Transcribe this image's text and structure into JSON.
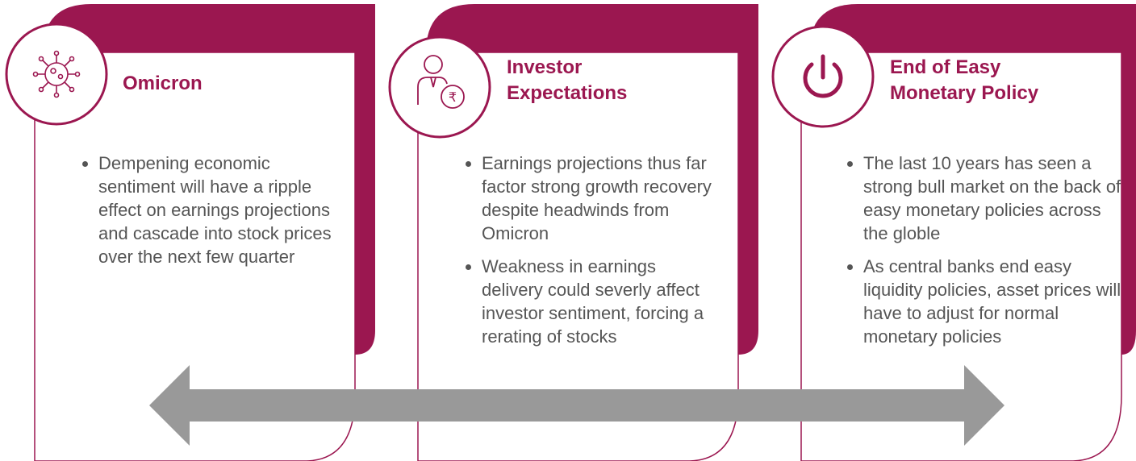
{
  "cards": [
    {
      "title": "Omicron",
      "bullets": [
        "Dempening economic sentiment will have a ripple effect on earnings projections and cascade into stock prices over the next few quarter"
      ]
    },
    {
      "title": "Investor Expectations",
      "bullets": [
        "Earnings projections thus far factor strong growth recovery despite headwinds from Omicron",
        "Weakness in earnings delivery could severly affect investor sentiment, forcing a rerating of stocks"
      ]
    },
    {
      "title": "End of Easy Monetary Policy",
      "bullets": [
        "The last 10 years has seen a strong bull market on the back of easy monetary policies across the globle",
        "As central banks end easy liquidity policies, asset prices will have to adjust for normal monetary policies"
      ]
    }
  ]
}
